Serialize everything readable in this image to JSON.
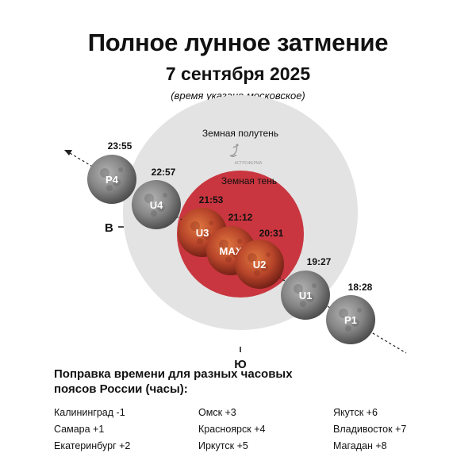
{
  "header": {
    "title": "Полное лунное затмение",
    "date": "7 сентября 2025",
    "note": "(время указано московское)"
  },
  "diagram": {
    "penumbra_label": "Земная полутень",
    "umbra_label": "Земная тень",
    "logo_text": "АСТРОФЕРМА",
    "east_label": "В",
    "south_label": "Ю",
    "colors": {
      "penumbra": "#e3e3e3",
      "umbra": "#c9363f",
      "moon_gray": "#7b7b7b",
      "moon_red": "#b8452a"
    },
    "phases": [
      {
        "key": "P4",
        "label": "P4",
        "time": "23:55",
        "type": "penumbral"
      },
      {
        "key": "U4",
        "label": "U4",
        "time": "22:57",
        "type": "partial"
      },
      {
        "key": "U3",
        "label": "U3",
        "time": "21:53",
        "type": "total"
      },
      {
        "key": "MAX",
        "label": "MAX",
        "time": "21:12",
        "type": "total"
      },
      {
        "key": "U2",
        "label": "U2",
        "time": "20:31",
        "type": "total"
      },
      {
        "key": "U1",
        "label": "U1",
        "time": "19:27",
        "type": "partial"
      },
      {
        "key": "P1",
        "label": "P1",
        "time": "18:28",
        "type": "penumbral"
      }
    ]
  },
  "corrections": {
    "title": "Поправка времени для разных часовых поясов России (часы):",
    "columns": [
      [
        "Калининград -1",
        "Самара +1",
        "Екатеринбург +2"
      ],
      [
        "Омск +3",
        "Красноярск +4",
        "Иркутск +5"
      ],
      [
        "Якутск +6",
        "Владивосток +7",
        "Магадан +8"
      ]
    ]
  }
}
